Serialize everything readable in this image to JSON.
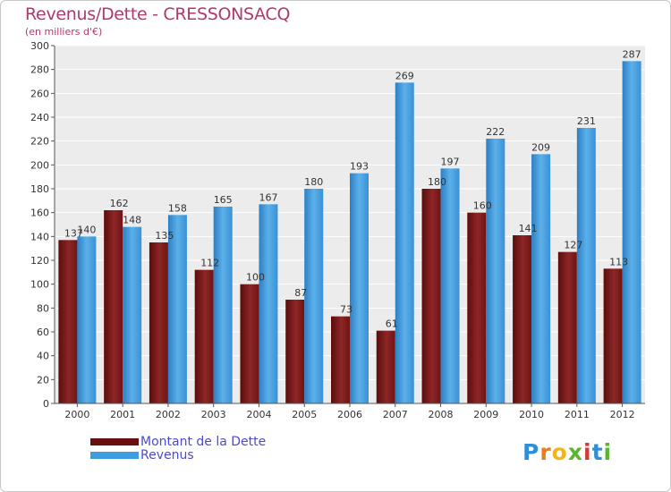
{
  "chart_data": {
    "type": "bar",
    "title": "Revenus/Dette - CRESSONSACQ",
    "subtitle": "(en milliers d'€)",
    "categories": [
      "2000",
      "2001",
      "2002",
      "2003",
      "2004",
      "2005",
      "2006",
      "2007",
      "2008",
      "2009",
      "2010",
      "2011",
      "2012"
    ],
    "series": [
      {
        "name": "Montant de la Dette",
        "color": "#8b1a1a",
        "values": [
          137,
          162,
          135,
          112,
          100,
          87,
          73,
          61,
          180,
          160,
          141,
          127,
          113
        ]
      },
      {
        "name": "Revenus",
        "color": "#3d9de0",
        "values": [
          140,
          148,
          158,
          165,
          167,
          180,
          193,
          269,
          197,
          222,
          209,
          231,
          287
        ]
      }
    ],
    "ylim": [
      0,
      300
    ],
    "yticks": [
      0,
      20,
      40,
      60,
      80,
      100,
      120,
      140,
      160,
      180,
      200,
      220,
      240,
      260,
      280,
      300
    ],
    "grid": true,
    "legend_position": "bottom-left"
  },
  "logo": {
    "letters": [
      "P",
      "r",
      "o",
      "x",
      "i",
      "t",
      "i"
    ]
  }
}
